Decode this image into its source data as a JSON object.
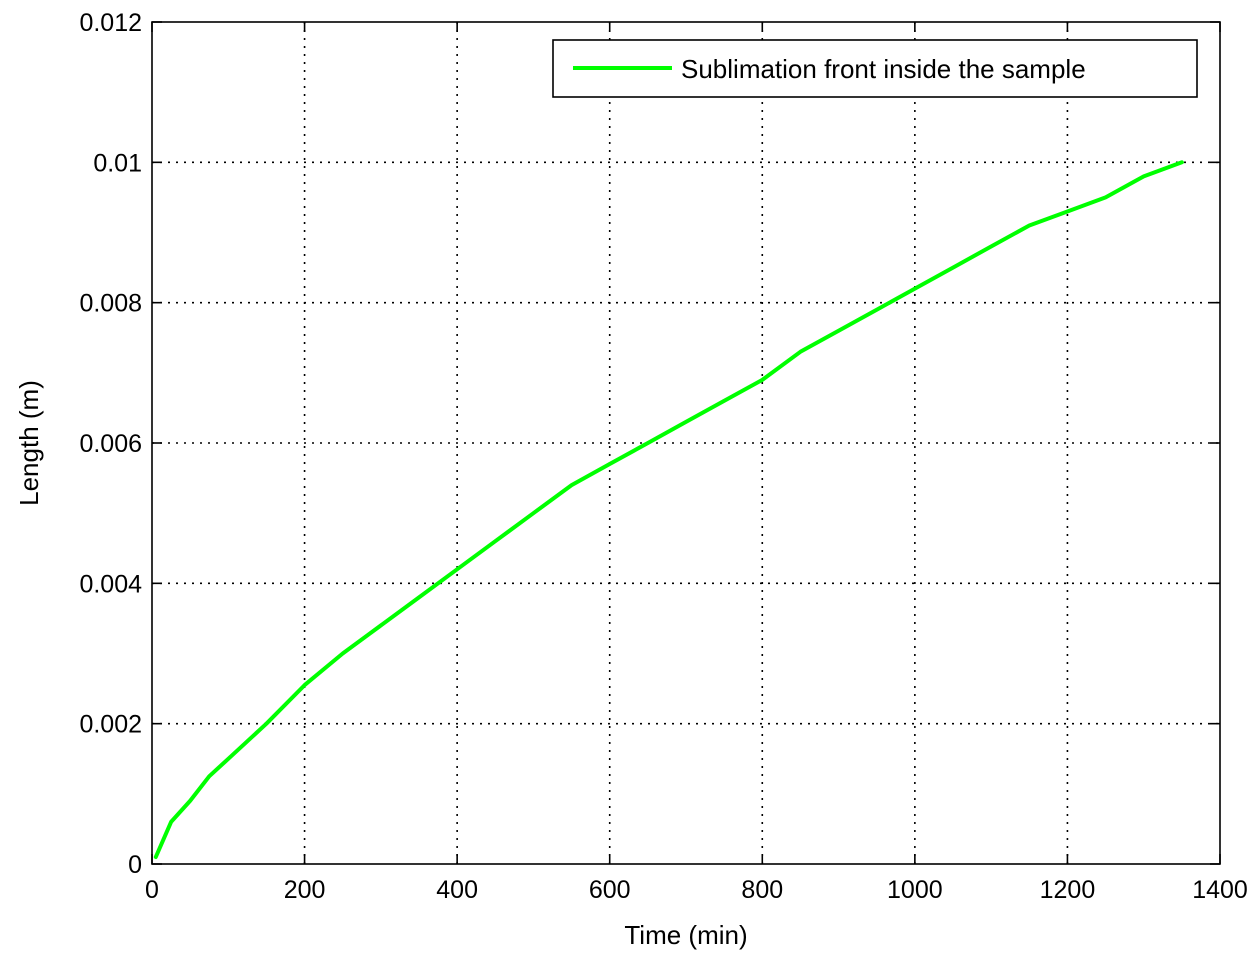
{
  "chart_data": {
    "type": "line",
    "title": "",
    "xlabel": "Time (min)",
    "ylabel": "Length (m)",
    "xlim": [
      0,
      1400
    ],
    "ylim": [
      0,
      0.012
    ],
    "xticks": [
      0,
      200,
      400,
      600,
      800,
      1000,
      1200,
      1400
    ],
    "xtick_labels": [
      "0",
      "200",
      "400",
      "600",
      "800",
      "1000",
      "1200",
      "1400"
    ],
    "yticks": [
      0,
      0.002,
      0.004,
      0.006,
      0.008,
      0.01,
      0.012
    ],
    "ytick_labels": [
      "0",
      "0.002",
      "0.004",
      "0.006",
      "0.008",
      "0.01",
      "0.012"
    ],
    "grid": true,
    "legend_position": "top-right",
    "series": [
      {
        "name": "Sublimation front inside the sample",
        "color": "#00ff00",
        "x": [
          5,
          25,
          50,
          75,
          100,
          150,
          200,
          250,
          300,
          350,
          400,
          450,
          500,
          550,
          600,
          650,
          700,
          750,
          800,
          850,
          900,
          950,
          1000,
          1050,
          1100,
          1150,
          1200,
          1250,
          1300,
          1350
        ],
        "y": [
          0.0001,
          0.0006,
          0.0009,
          0.00125,
          0.0015,
          0.002,
          0.00255,
          0.003,
          0.0034,
          0.0038,
          0.0042,
          0.0046,
          0.005,
          0.0054,
          0.0057,
          0.006,
          0.0063,
          0.0066,
          0.0069,
          0.0073,
          0.0076,
          0.0079,
          0.0082,
          0.0085,
          0.0088,
          0.0091,
          0.0093,
          0.0095,
          0.0098,
          0.01
        ]
      }
    ]
  }
}
